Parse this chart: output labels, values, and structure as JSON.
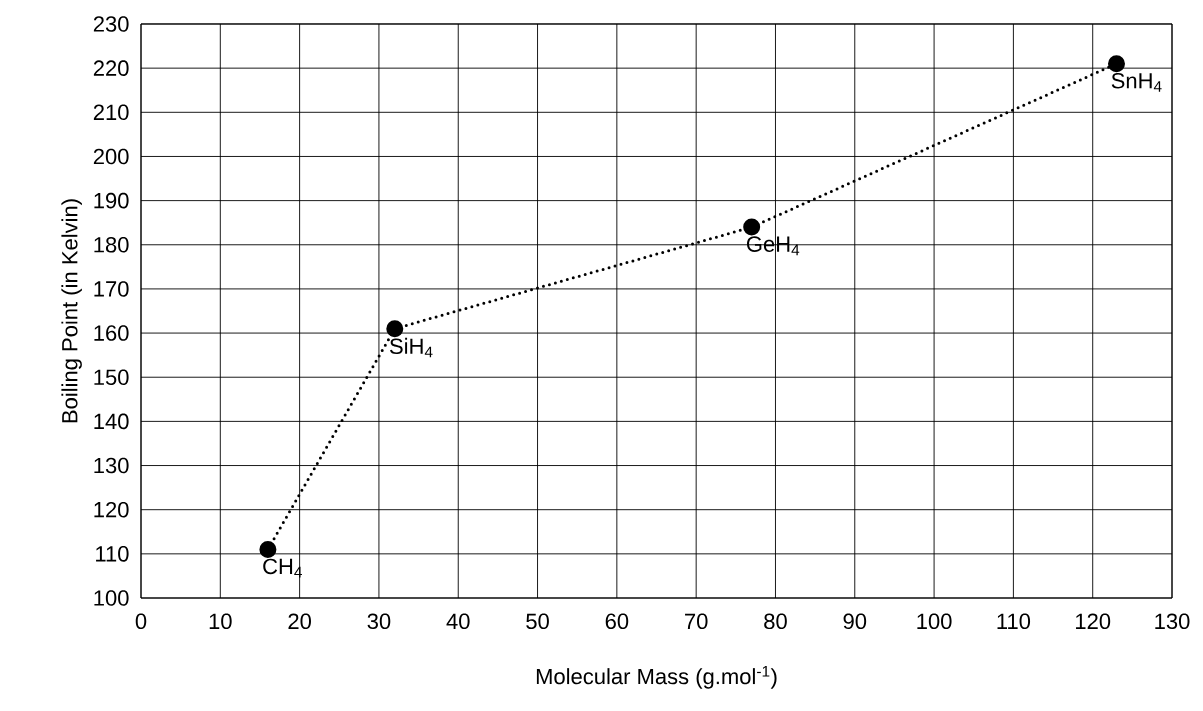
{
  "chart_data": {
    "type": "line",
    "xlabel": "Molecular Mass (g.mol$^{-1}$)",
    "ylabel": "Boiling Point (in Kelvin)",
    "x": [
      16,
      32,
      77,
      123
    ],
    "series": [
      {
        "color": "#000000",
        "values": [
          111,
          161,
          184,
          221
        ]
      }
    ],
    "xlim": [
      0,
      130
    ],
    "ylim": [
      100,
      230
    ],
    "xticks": [
      0,
      10,
      20,
      30,
      40,
      50,
      60,
      70,
      80,
      90,
      100,
      110,
      120,
      130
    ],
    "yticks": [
      100,
      110,
      120,
      130,
      140,
      150,
      160,
      170,
      180,
      190,
      200,
      210,
      220,
      230
    ],
    "grid": true,
    "marker": "circle",
    "line_style": "dotted",
    "annotations": [
      {
        "text": "CH$_{4}$",
        "x": 16,
        "y": 111
      },
      {
        "text": "SiH$_{4}$",
        "x": 32,
        "y": 161
      },
      {
        "text": "GeH$_{4}$",
        "x": 77,
        "y": 184
      },
      {
        "text": "SnH$_{4}$",
        "x": 123,
        "y": 221
      }
    ]
  }
}
